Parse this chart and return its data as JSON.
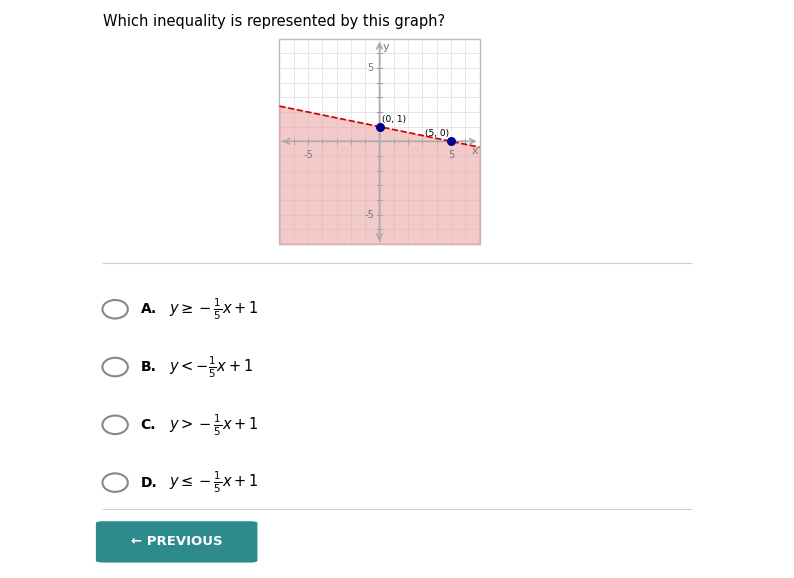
{
  "title": "Which inequality is represented by this graph?",
  "graph_xlim": [
    -7,
    7
  ],
  "graph_ylim": [
    -7,
    7
  ],
  "line_slope": -0.2,
  "line_intercept": 1,
  "line_color": "#cc0000",
  "line_style": "--",
  "line_width": 1.2,
  "shade_color": "#e8a0a0",
  "shade_alpha": 0.55,
  "points": [
    [
      0,
      1
    ],
    [
      5,
      0
    ]
  ],
  "point_labels": [
    "(0, 1)",
    "(5, 0)"
  ],
  "point_color": "#00008b",
  "point_size": 30,
  "axis_color": "#aaaaaa",
  "grid_color": "#dddddd",
  "fig_width": 7.94,
  "fig_height": 5.78,
  "fig_dpi": 100,
  "graph_bg": "#ffffff",
  "outer_bg": "#ffffff",
  "answer_options": [
    [
      "A",
      "$y \\geq -\\frac{1}{5}x+1$"
    ],
    [
      "B",
      "$y < -\\frac{1}{5}x+1$"
    ],
    [
      "C",
      "$y > -\\frac{1}{5}x+1$"
    ],
    [
      "D",
      "$y \\leq -\\frac{1}{5}x+1$"
    ]
  ],
  "button_color": "#2e8b8b",
  "separator_color": "#cccccc"
}
